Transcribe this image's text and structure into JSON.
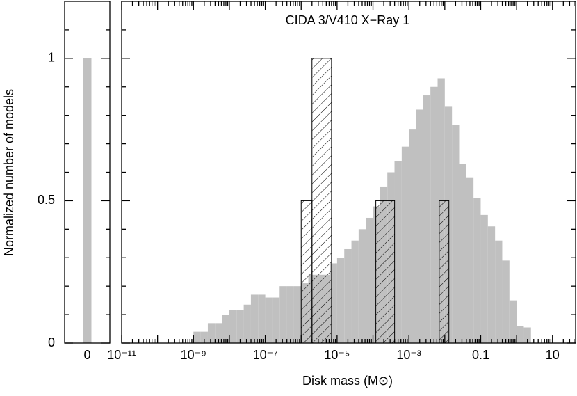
{
  "chart_data": [
    {
      "type": "bar",
      "ylabel": "Normalized number of models",
      "categories": [
        "0"
      ],
      "values": [
        1
      ],
      "color": "#c0c0c0",
      "ylim": [
        0,
        1.2
      ],
      "yticks": [
        0,
        0.5,
        1
      ],
      "yminor": [
        0.1,
        0.2,
        0.3,
        0.4,
        0.6,
        0.7,
        0.8,
        0.9,
        1.1
      ]
    },
    {
      "type": "histogram",
      "title": "CIDA 3/V410 X−Ray 1",
      "xlabel": "Disk mass (M⊙)",
      "log_x": true,
      "xlim": [
        1e-11,
        44
      ],
      "ylim": [
        0,
        1.2
      ],
      "xticks": [
        {
          "value": 1e-11,
          "label": "10⁻¹¹"
        },
        {
          "value": 1e-09,
          "label": "10⁻⁹"
        },
        {
          "value": 1e-07,
          "label": "10⁻⁷"
        },
        {
          "value": 1e-05,
          "label": "10⁻⁵"
        },
        {
          "value": 0.001,
          "label": "10⁻³"
        },
        0.1,
        10
      ],
      "xdecades": [
        1e-10,
        1e-08,
        1e-06,
        0.0001,
        0.01,
        1
      ],
      "xminor": [
        2e-11,
        3e-11,
        4e-11,
        5e-11,
        6e-11,
        7e-11,
        8e-11,
        9e-11,
        2e-10,
        3e-10,
        4e-10,
        5e-10,
        6e-10,
        7e-10,
        8e-10,
        9e-10,
        2e-09,
        3e-09,
        4e-09,
        5e-09,
        6e-09,
        7e-09,
        8e-09,
        9e-09,
        2e-08,
        3e-08,
        4e-08,
        5e-08,
        6e-08,
        7e-08,
        8e-08,
        9e-08,
        2e-07,
        3e-07,
        4e-07,
        5e-07,
        6e-07,
        7e-07,
        8e-07,
        9e-07,
        2e-06,
        3e-06,
        4e-06,
        5e-06,
        6e-06,
        7e-06,
        8e-06,
        9e-06,
        2e-05,
        3e-05,
        4e-05,
        5e-05,
        6e-05,
        7e-05,
        8e-05,
        9e-05,
        0.0002,
        0.0003,
        0.0004,
        0.0005,
        0.0006,
        0.0007,
        0.0008,
        0.0009,
        0.002,
        0.003,
        0.004,
        0.005,
        0.006,
        0.007,
        0.008,
        0.009,
        0.02,
        0.03,
        0.04,
        0.05,
        0.06,
        0.07,
        0.08,
        0.09,
        0.2,
        0.3,
        0.4,
        0.5,
        0.6,
        0.7,
        0.8,
        0.9,
        2,
        3,
        4,
        5,
        6,
        7,
        8,
        9,
        20,
        30,
        40
      ],
      "yticks": [
        0,
        0.5,
        1
      ],
      "yminor": [
        0.1,
        0.2,
        0.3,
        0.4,
        0.6,
        0.7,
        0.8,
        0.9,
        1.1
      ],
      "series": [
        {
          "color": "#c0c0c0",
          "hatch": false,
          "bins": [
            1e-09,
            1.585e-09,
            2.512e-09,
            3.981e-09,
            6.31e-09,
            1e-08,
            1.585e-08,
            2.512e-08,
            3.981e-08,
            6.31e-08,
            1e-07,
            1.585e-07,
            2.512e-07,
            3.981e-07,
            6.31e-07,
            1e-06,
            1.585e-06,
            2.512e-06,
            3.981e-06,
            6.31e-06,
            1e-05,
            1.585e-05,
            2.512e-05,
            3.981e-05,
            6.31e-05,
            0.0001,
            0.0001585,
            0.0002512,
            0.0003981,
            0.000631,
            0.001,
            0.001585,
            0.002512,
            0.003981,
            0.00631,
            0.01,
            0.01585,
            0.02512,
            0.03981,
            0.0631,
            0.1,
            0.1585,
            0.2512,
            0.3981,
            0.631,
            1,
            1.585,
            2.512
          ],
          "values": [
            0.04,
            0.04,
            0.07,
            0.07,
            0.1,
            0.115,
            0.115,
            0.135,
            0.17,
            0.17,
            0.16,
            0.16,
            0.2,
            0.2,
            0.2,
            0.21,
            0.24,
            0.24,
            0.24,
            0.28,
            0.3,
            0.33,
            0.36,
            0.4,
            0.44,
            0.48,
            0.55,
            0.6,
            0.64,
            0.69,
            0.75,
            0.82,
            0.87,
            0.9,
            0.93,
            0.83,
            0.765,
            0.63,
            0.58,
            0.51,
            0.45,
            0.41,
            0.36,
            0.29,
            0.15,
            0.06,
            0.055
          ]
        },
        {
          "color": "#000000",
          "hatch": true,
          "bins": [
            1e-06,
            2e-06,
            7e-06,
            0.00012,
            0.0004,
            0.007,
            0.013
          ],
          "values": [
            0.5,
            1,
            0,
            0.5,
            0,
            0.5
          ]
        }
      ]
    }
  ]
}
